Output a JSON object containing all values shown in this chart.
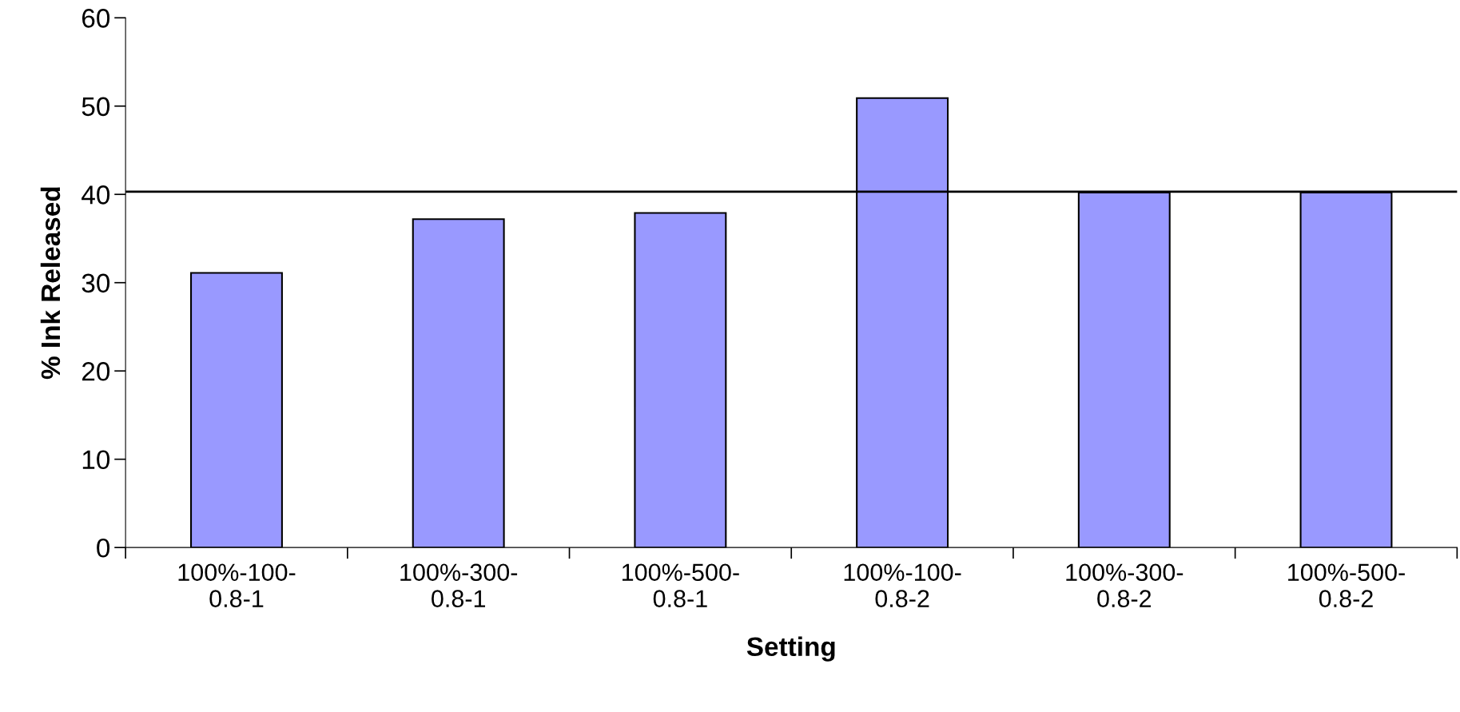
{
  "chart_data": {
    "type": "bar",
    "xlabel": "Setting",
    "ylabel": "% Ink Released",
    "categories": [
      "100%-100-\n0.8-1",
      "100%-300-\n0.8-1",
      "100%-500-\n0.8-1",
      "100%-100-\n0.8-2",
      "100%-300-\n0.8-2",
      "100%-500-\n0.8-2"
    ],
    "values": [
      31.1,
      37.2,
      37.9,
      50.9,
      40.2,
      40.2
    ],
    "color": "#9999ff",
    "ylim": [
      0,
      60
    ],
    "yticks": [
      0,
      10,
      20,
      30,
      40,
      50,
      60
    ],
    "ref_lines": [
      {
        "axis": "y",
        "value": 40.3,
        "color": "#000000",
        "line_style": "solid"
      }
    ],
    "grid": false,
    "legend": false
  }
}
